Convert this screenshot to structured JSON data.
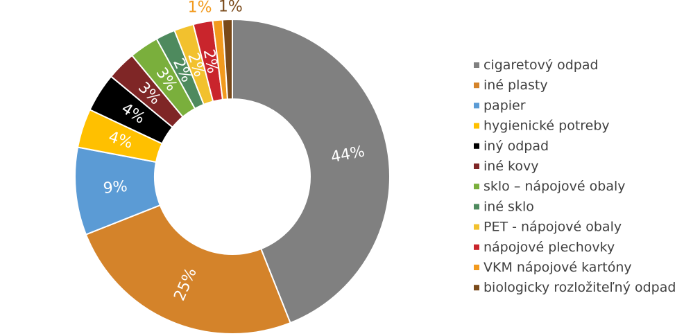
{
  "chart_data": {
    "type": "pie",
    "donut": true,
    "title": "",
    "legend_position": "right",
    "categories": [
      "cigaretový odpad",
      "iné plasty",
      "papier",
      "hygienické potreby",
      "iný odpad",
      "iné kovy",
      "sklo – nápojové obaly",
      "iné sklo",
      "PET - nápojové obaly",
      "nápojové plechovky",
      "VKM nápojové kartóny",
      "biologicky rozložiteľný odpad"
    ],
    "values": [
      44,
      25,
      9,
      4,
      4,
      3,
      3,
      2,
      2,
      2,
      1,
      1
    ],
    "labels": [
      "44%",
      "25%",
      "9%",
      "4%",
      "4%",
      "3%",
      "3%",
      "2%",
      "2%",
      "2%",
      "1%",
      "1%"
    ],
    "colors": [
      "#808080",
      "#D4832A",
      "#5B9BD5",
      "#FFC000",
      "#000000",
      "#7F2626",
      "#7AAF3C",
      "#4E8A5E",
      "#F2C12E",
      "#C9252C",
      "#F29A1E",
      "#7A4A1A"
    ]
  }
}
